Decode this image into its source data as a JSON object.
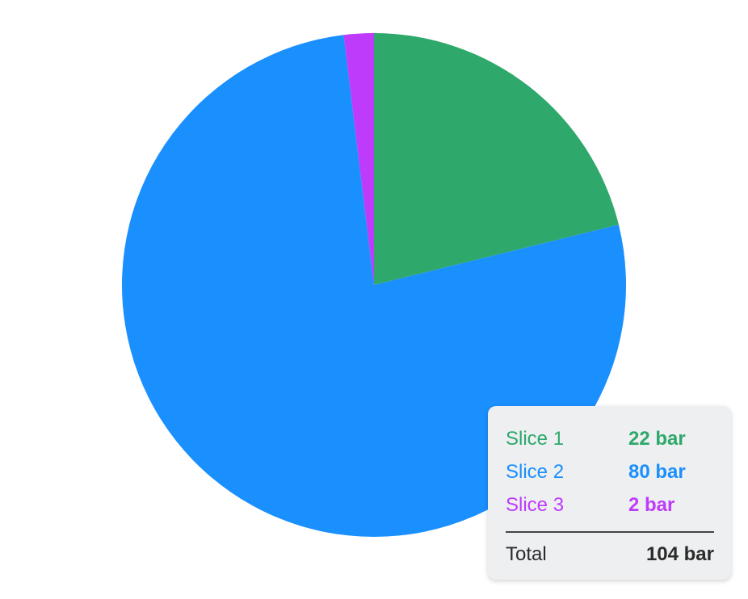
{
  "chart_data": {
    "type": "pie",
    "unit": "bar",
    "start_angle": "top",
    "direction": "clockwise",
    "slices": [
      {
        "name": "Slice 1",
        "value": 22,
        "label": "22 bar",
        "color": "#2ea86b"
      },
      {
        "name": "Slice 2",
        "value": 80,
        "label": "80 bar",
        "color": "#1a8ffe"
      },
      {
        "name": "Slice 3",
        "value": 2,
        "label": "2 bar",
        "color": "#be3bfb"
      }
    ],
    "total": {
      "name": "Total",
      "label": "104 bar",
      "value": 104
    }
  }
}
